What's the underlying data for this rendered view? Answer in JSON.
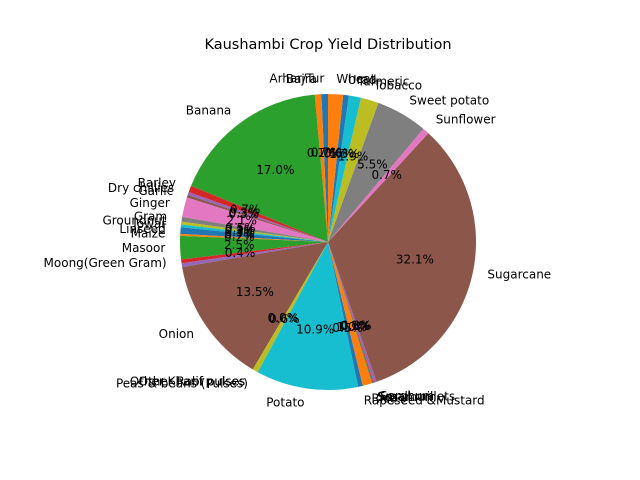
{
  "chart_data": {
    "type": "pie",
    "title": "Kaushambi Crop Yield Distribution",
    "start_angle": 90,
    "counterclockwise": true,
    "slices": [
      {
        "label": "Arhar/Tur",
        "value": 0.7,
        "pct_label": "0.7%",
        "color": "#1f77b4"
      },
      {
        "label": "Bajra",
        "value": 0.7,
        "pct_label": "0.7%",
        "color": "#ff7f0e"
      },
      {
        "label": "Banana",
        "value": 17.0,
        "pct_label": "17.0%",
        "color": "#2ca02c"
      },
      {
        "label": "Barley",
        "value": 0.7,
        "pct_label": "0.7%",
        "color": "#d62728"
      },
      {
        "label": "Dry chillies",
        "value": 0.3,
        "pct_label": "0.3%",
        "color": "#9467bd"
      },
      {
        "label": "Garlic",
        "value": 0.3,
        "pct_label": "0.3%",
        "color": "#8c564b"
      },
      {
        "label": "Ginger",
        "value": 2.1,
        "pct_label": "2.1%",
        "color": "#e377c2"
      },
      {
        "label": "Gram",
        "value": 0.5,
        "pct_label": "0.5%",
        "color": "#7f7f7f"
      },
      {
        "label": "Groundnut",
        "value": 0.3,
        "pct_label": "0.3%",
        "color": "#bcbd22"
      },
      {
        "label": "Jowar",
        "value": 0.3,
        "pct_label": "0.3%",
        "color": "#17becf"
      },
      {
        "label": "Linseed",
        "value": 0.7,
        "pct_label": "0.7%",
        "color": "#1f77b4"
      },
      {
        "label": "Maize",
        "value": 0.2,
        "pct_label": "0.2%",
        "color": "#ff7f0e"
      },
      {
        "label": "Masoor",
        "value": 2.5,
        "pct_label": "2.5%",
        "color": "#2ca02c"
      },
      {
        "label": "Moong(Green Gram)",
        "value": 0.4,
        "pct_label": "0.4%",
        "color": "#d62728"
      },
      {
        "label": "",
        "value": 0.4,
        "pct_label": "",
        "color": "#9467bd"
      },
      {
        "label": "Onion",
        "value": 13.5,
        "pct_label": "13.5%",
        "color": "#8c564b"
      },
      {
        "label": "Other Kharif pulses",
        "value": 0.0,
        "pct_label": "0.0%",
        "color": "#e377c2"
      },
      {
        "label": "Other Rabi pulses",
        "value": 0.0,
        "pct_label": "0.0%",
        "color": "#7f7f7f"
      },
      {
        "label": "Peas & beans (Pulses)",
        "value": 0.6,
        "pct_label": "0.6%",
        "color": "#bcbd22"
      },
      {
        "label": "Potato",
        "value": 10.9,
        "pct_label": "10.9%",
        "color": "#17becf"
      },
      {
        "label": "Rapeseed &Mustard",
        "value": 0.5,
        "pct_label": "0.5%",
        "color": "#1f77b4"
      },
      {
        "label": "Rice",
        "value": 1.0,
        "pct_label": "1.0%",
        "color": "#ff7f0e"
      },
      {
        "label": "Sesamum",
        "value": 0.1,
        "pct_label": "0.1%",
        "color": "#2ca02c"
      },
      {
        "label": "Small millets",
        "value": 0.1,
        "pct_label": "0.1%",
        "color": "#d62728"
      },
      {
        "label": "Sorghum",
        "value": 0.3,
        "pct_label": "0.3%",
        "color": "#9467bd"
      },
      {
        "label": "Sugarcane",
        "value": 32.1,
        "pct_label": "32.1%",
        "color": "#8c564b"
      },
      {
        "label": "Sunflower",
        "value": 0.7,
        "pct_label": "0.7%",
        "color": "#e377c2"
      },
      {
        "label": "Sweet potato",
        "value": 5.5,
        "pct_label": "5.5%",
        "color": "#7f7f7f"
      },
      {
        "label": "Tobacco",
        "value": 1.9,
        "pct_label": "1.9%",
        "color": "#bcbd22"
      },
      {
        "label": "Turmeric",
        "value": 1.3,
        "pct_label": "1.3%",
        "color": "#17becf"
      },
      {
        "label": "Urad",
        "value": 0.6,
        "pct_label": "0.6%",
        "color": "#1f77b4"
      },
      {
        "label": "Wheat",
        "value": 1.6,
        "pct_label": "1.6%",
        "color": "#ff7f0e"
      }
    ]
  }
}
